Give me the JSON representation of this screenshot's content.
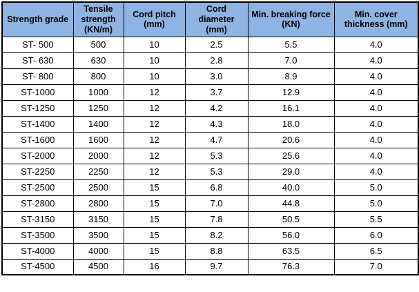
{
  "table": {
    "name": "steel-cord-belt-strength-grades",
    "columns": [
      "Strength grade",
      "Tensile strength (KN/m)",
      "Cord pitch (mm)",
      "Cord diameter (mm)",
      "Min. breaking force (KN)",
      "Min. cover thickness (mm)"
    ],
    "rows": [
      [
        "ST- 500",
        "500",
        "10",
        "2.5",
        "5.5",
        "4.0"
      ],
      [
        "ST- 630",
        "630",
        "10",
        "2.8",
        "7.0",
        "4.0"
      ],
      [
        "ST- 800",
        "800",
        "10",
        "3.0",
        "8.9",
        "4.0"
      ],
      [
        "ST-1000",
        "1000",
        "12",
        "3.7",
        "12.9",
        "4.0"
      ],
      [
        "ST-1250",
        "1250",
        "12",
        "4.2",
        "16.1",
        "4.0"
      ],
      [
        "ST-1400",
        "1400",
        "12",
        "4.3",
        "18.0",
        "4.0"
      ],
      [
        "ST-1600",
        "1600",
        "12",
        "4.7",
        "20.6",
        "4.0"
      ],
      [
        "ST-2000",
        "2000",
        "12",
        "5.3",
        "25.6",
        "4.0"
      ],
      [
        "ST-2250",
        "2250",
        "12",
        "5.3",
        "29.0",
        "4.0"
      ],
      [
        "ST-2500",
        "2500",
        "15",
        "6.8",
        "40.0",
        "5.0"
      ],
      [
        "ST-2800",
        "2800",
        "15",
        "7.0",
        "44.8",
        "5.0"
      ],
      [
        "ST-3150",
        "3150",
        "15",
        "7.8",
        "50.5",
        "5.5"
      ],
      [
        "ST-3500",
        "3500",
        "15",
        "8.2",
        "56.0",
        "6.0"
      ],
      [
        "ST-4000",
        "4000",
        "15",
        "8.8",
        "63.5",
        "6.5"
      ],
      [
        "ST-4500",
        "4500",
        "16",
        "9.7",
        "76.3",
        "7.0"
      ]
    ]
  },
  "colors": {
    "header_bg": "#8DB4E2",
    "border": "#000000",
    "text": "#000000",
    "page_bg": "#FFFFFF"
  }
}
